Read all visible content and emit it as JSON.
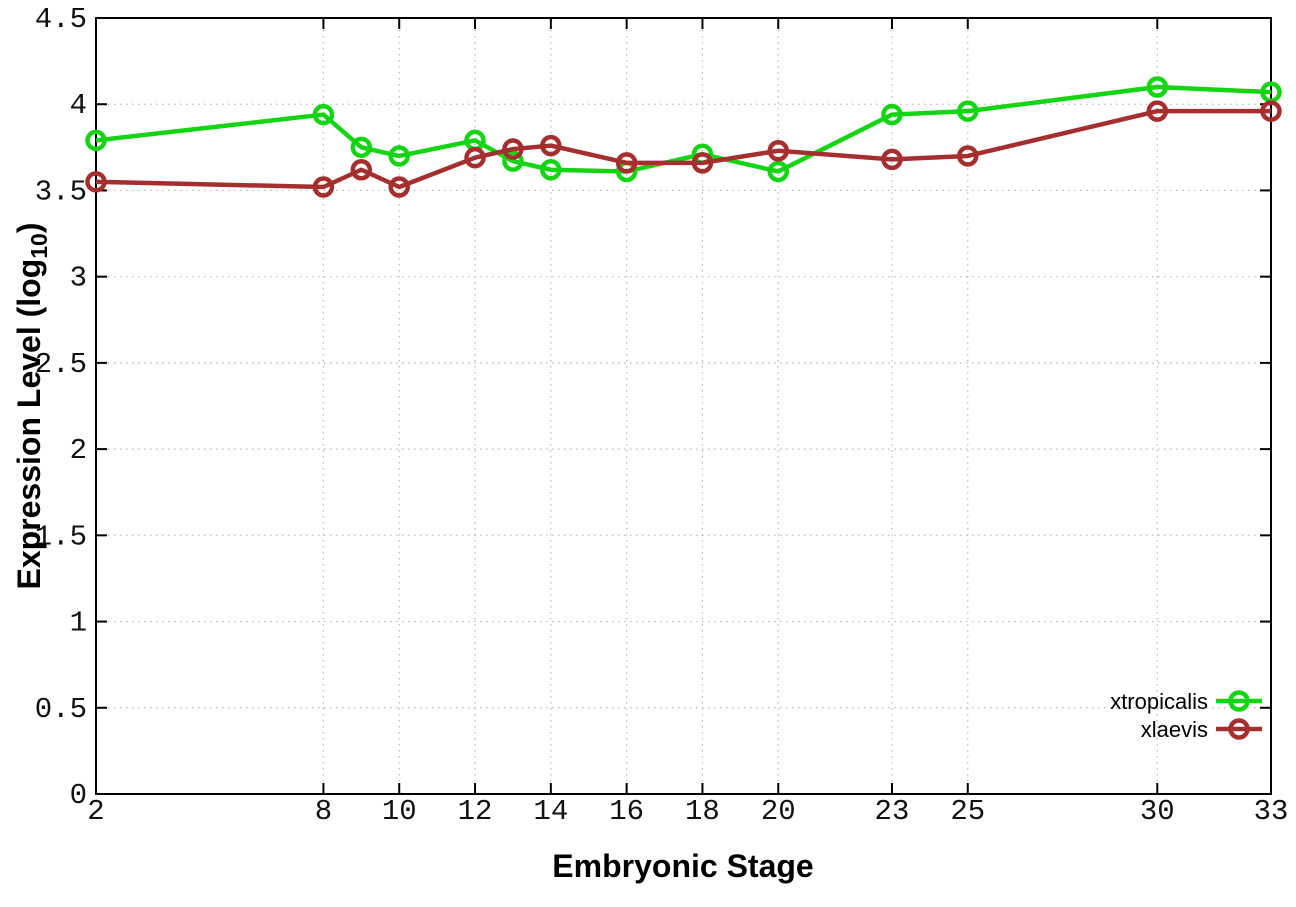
{
  "chart_data": {
    "type": "line",
    "title": "",
    "xlabel": "Embryonic Stage",
    "ylabel": "Expression Level (log10)",
    "ylabel_parts": {
      "main": "Expression Level (log",
      "sub": "10",
      "end": ")"
    },
    "x": [
      2,
      8,
      9,
      10,
      12,
      13,
      14,
      16,
      18,
      20,
      23,
      25,
      30,
      33
    ],
    "xlim": [
      2,
      33
    ],
    "ylim": [
      0,
      4.5
    ],
    "xtick_values": [
      2,
      8,
      10,
      12,
      14,
      16,
      18,
      20,
      23,
      25,
      30,
      33
    ],
    "xtick_labels": [
      "2",
      "8",
      "10",
      "12",
      "14",
      "16",
      "18",
      "20",
      "23",
      "25",
      "30",
      "33"
    ],
    "ytick_values": [
      0,
      0.5,
      1,
      1.5,
      2,
      2.5,
      3,
      3.5,
      4,
      4.5
    ],
    "ytick_labels": [
      "0",
      "0.5",
      "1",
      "1.5",
      "2",
      "2.5",
      "3",
      "3.5",
      "4",
      "4.5"
    ],
    "grid": true,
    "legend_position": "inside-bottom-right",
    "series": [
      {
        "name": "xtropicalis",
        "color": "#13d513",
        "marker": "open-circle",
        "values": [
          3.79,
          3.94,
          3.75,
          3.7,
          3.79,
          3.67,
          3.62,
          3.61,
          3.71,
          3.61,
          3.94,
          3.96,
          4.1,
          4.07
        ]
      },
      {
        "name": "xlaevis",
        "color": "#a52f2f",
        "marker": "open-circle",
        "values": [
          3.55,
          3.52,
          3.62,
          3.52,
          3.69,
          3.74,
          3.76,
          3.66,
          3.66,
          3.73,
          3.68,
          3.7,
          3.96,
          3.96
        ]
      }
    ]
  },
  "colors": {
    "background": "#ffffff",
    "grid": "#b8b8b8",
    "axis": "#000000",
    "tick_text": "#111111"
  }
}
